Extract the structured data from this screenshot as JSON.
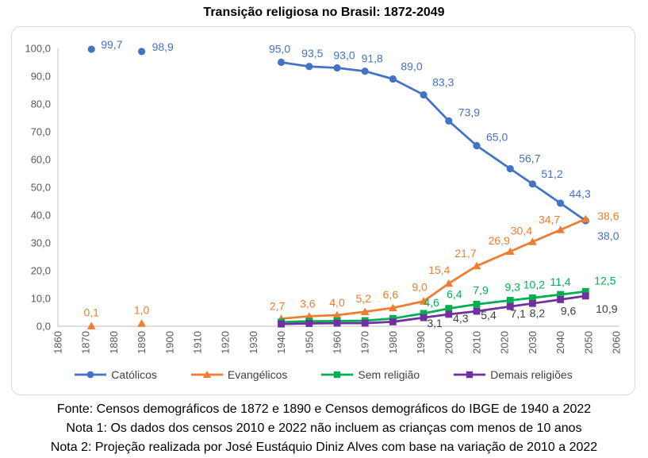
{
  "title": "Transição religiosa no Brasil: 1872-2049",
  "footer": {
    "fonte": "Fonte: Censos demográficos de 1872 e 1890 e Censos demográficos do IBGE de 1940 a 2022",
    "nota1": "Nota 1: Os dados dos censos 2010 e 2022 não incluem as crianças com menos de 10 anos",
    "nota2": "Nota 2: Projeção realizada por José Eustáquio Diniz Alves com base na variação de 2010 a 2022"
  },
  "colors": {
    "axis_text": "#595959",
    "axis_line": "#BFBFBF",
    "frame_border": "#D9D9D9",
    "catolicos_blue": "#4472C4",
    "evangelicos_orange": "#ED7D31",
    "sem_religiao_green": "#00B050",
    "demais_purple": "#7030A0",
    "demais_label": "#404040"
  },
  "chart_data": {
    "type": "line",
    "title": "Transição religiosa no Brasil: 1872-2049",
    "xlabel": "",
    "ylabel": "",
    "grid": false,
    "legend_position": "bottom",
    "x_axis": {
      "min": 1860,
      "max": 2060,
      "step": 10,
      "label_rotation": -90,
      "ticks": [
        "1860",
        "1870",
        "1880",
        "1890",
        "1900",
        "1910",
        "1920",
        "1930",
        "1940",
        "1950",
        "1960",
        "1970",
        "1980",
        "1990",
        "2000",
        "2010",
        "2020",
        "2030",
        "2040",
        "2050",
        "2060"
      ]
    },
    "y_axis": {
      "min": 0,
      "max": 100,
      "step": 10,
      "decimal_separator": ",",
      "ticks": [
        "0,0",
        "10,0",
        "20,0",
        "30,0",
        "40,0",
        "50,0",
        "60,0",
        "70,0",
        "80,0",
        "90,0",
        "100,0"
      ]
    },
    "series": [
      {
        "name": "Católicos",
        "color": "#4472C4",
        "marker": "circle",
        "connect_from": 1940,
        "points": [
          {
            "x": 1872,
            "y": 99.7,
            "label": "99,7",
            "dx": 12,
            "dy": -1,
            "anchor": "start"
          },
          {
            "x": 1890,
            "y": 98.9,
            "label": "98,9",
            "dx": 13,
            "dy": -1,
            "anchor": "start"
          },
          {
            "x": 1940,
            "y": 95.0,
            "label": "95,0",
            "dx": -2,
            "dy": -12
          },
          {
            "x": 1950,
            "y": 93.5,
            "label": "93,5",
            "dx": 4,
            "dy": -12
          },
          {
            "x": 1960,
            "y": 93.0,
            "label": "93,0",
            "dx": 9,
            "dy": -11
          },
          {
            "x": 1970,
            "y": 91.8,
            "label": "91,8",
            "dx": 9,
            "dy": -11
          },
          {
            "x": 1980,
            "y": 89.0,
            "label": "89,0",
            "dx": 10,
            "dy": -11,
            "anchor": "start"
          },
          {
            "x": 1991,
            "y": 83.3,
            "label": "83,3",
            "dx": 11,
            "dy": -11,
            "anchor": "start"
          },
          {
            "x": 2000,
            "y": 73.9,
            "label": "73,9",
            "dx": 12,
            "dy": -6,
            "anchor": "start"
          },
          {
            "x": 2010,
            "y": 65.0,
            "label": "65,0",
            "dx": 12,
            "dy": -6,
            "anchor": "start"
          },
          {
            "x": 2022,
            "y": 56.7,
            "label": "56,7",
            "dx": 11,
            "dy": -8,
            "anchor": "start"
          },
          {
            "x": 2030,
            "y": 51.2,
            "label": "51,2",
            "dx": 11,
            "dy": -8,
            "anchor": "start"
          },
          {
            "x": 2040,
            "y": 44.3,
            "label": "44,3",
            "dx": 11,
            "dy": -7,
            "anchor": "start"
          },
          {
            "x": 2049,
            "y": 38.0,
            "label": "38,0",
            "dx": 15,
            "dy": 24,
            "anchor": "start"
          }
        ]
      },
      {
        "name": "Evangélicos",
        "color": "#ED7D31",
        "marker": "triangle",
        "connect_from": 1940,
        "points": [
          {
            "x": 1872,
            "y": 0.1,
            "label": "0,1",
            "dx": 0,
            "dy": -12
          },
          {
            "x": 1890,
            "y": 1.0,
            "label": "1,0",
            "dx": 0,
            "dy": -12
          },
          {
            "x": 1940,
            "y": 2.7,
            "label": "2,7",
            "dx": -5,
            "dy": -11
          },
          {
            "x": 1950,
            "y": 3.6,
            "label": "3,6",
            "dx": -2,
            "dy": -11
          },
          {
            "x": 1960,
            "y": 4.0,
            "label": "4,0",
            "dx": 0,
            "dy": -11
          },
          {
            "x": 1970,
            "y": 5.2,
            "label": "5,2",
            "dx": -2,
            "dy": -12
          },
          {
            "x": 1980,
            "y": 6.6,
            "label": "6,6",
            "dx": -3,
            "dy": -12
          },
          {
            "x": 1991,
            "y": 9.0,
            "label": "9,0",
            "dx": -5,
            "dy": -13
          },
          {
            "x": 2000,
            "y": 15.4,
            "label": "15,4",
            "dx": -12,
            "dy": -12
          },
          {
            "x": 2010,
            "y": 21.7,
            "label": "21,7",
            "dx": -14,
            "dy": -11
          },
          {
            "x": 2022,
            "y": 26.9,
            "label": "26,9",
            "dx": -14,
            "dy": -9
          },
          {
            "x": 2030,
            "y": 30.4,
            "label": "30,4",
            "dx": -14,
            "dy": -9
          },
          {
            "x": 2040,
            "y": 34.7,
            "label": "34,7",
            "dx": -14,
            "dy": -8
          },
          {
            "x": 2049,
            "y": 38.6,
            "label": "38,6",
            "dx": 15,
            "dy": 1,
            "anchor": "start"
          }
        ]
      },
      {
        "name": "Sem religião",
        "color": "#00B050",
        "marker": "square",
        "points": [
          {
            "x": 1940,
            "y": 1.5,
            "label": null
          },
          {
            "x": 1950,
            "y": 1.8,
            "label": null
          },
          {
            "x": 1960,
            "y": 1.9,
            "label": null
          },
          {
            "x": 1970,
            "y": 2.0,
            "label": null
          },
          {
            "x": 1980,
            "y": 2.8,
            "label": null
          },
          {
            "x": 1991,
            "y": 4.6,
            "label": "4,6",
            "dx": 10,
            "dy": -9
          },
          {
            "x": 2000,
            "y": 6.4,
            "label": "6,4",
            "dx": 7,
            "dy": -13
          },
          {
            "x": 2010,
            "y": 7.9,
            "label": "7,9",
            "dx": 5,
            "dy": -13
          },
          {
            "x": 2022,
            "y": 9.3,
            "label": "9,3",
            "dx": 3,
            "dy": -12
          },
          {
            "x": 2030,
            "y": 10.2,
            "label": "10,2",
            "dx": 2,
            "dy": -12
          },
          {
            "x": 2040,
            "y": 11.4,
            "label": "11,4",
            "dx": 0,
            "dy": -11
          },
          {
            "x": 2049,
            "y": 12.5,
            "label": "12,5",
            "dx": 11,
            "dy": -9,
            "anchor": "start"
          }
        ]
      },
      {
        "name": "Demais religiões",
        "color": "#7030A0",
        "marker": "square",
        "label_color": "#404040",
        "points": [
          {
            "x": 1940,
            "y": 0.8,
            "label": null
          },
          {
            "x": 1950,
            "y": 1.0,
            "label": null
          },
          {
            "x": 1960,
            "y": 1.1,
            "label": null
          },
          {
            "x": 1970,
            "y": 1.1,
            "label": null
          },
          {
            "x": 1980,
            "y": 1.6,
            "label": null
          },
          {
            "x": 1991,
            "y": 3.1,
            "label": "3,1",
            "dx": 14,
            "dy": 12
          },
          {
            "x": 2000,
            "y": 4.3,
            "label": "4,3",
            "dx": 15,
            "dy": 10
          },
          {
            "x": 2010,
            "y": 5.4,
            "label": "5,4",
            "dx": 15,
            "dy": 10
          },
          {
            "x": 2022,
            "y": 7.1,
            "label": "7,1",
            "dx": 10,
            "dy": 14
          },
          {
            "x": 2030,
            "y": 8.2,
            "label": "8,2",
            "dx": 6,
            "dy": 17
          },
          {
            "x": 2040,
            "y": 9.6,
            "label": "9,6",
            "dx": 10,
            "dy": 19
          },
          {
            "x": 2049,
            "y": 10.9,
            "label": "10,9",
            "dx": 13,
            "dy": 21,
            "anchor": "start"
          }
        ]
      }
    ]
  }
}
